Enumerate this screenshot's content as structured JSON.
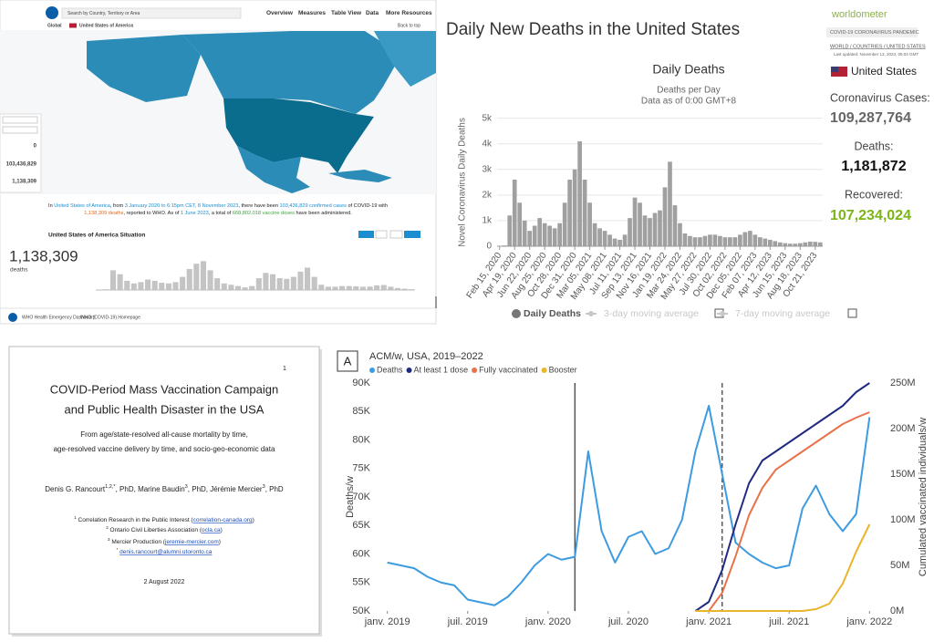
{
  "who_dashboard": {
    "search_placeholder": "Search by Country, Territory or Area",
    "nav": [
      "Overview",
      "Measures",
      "Table View",
      "Data",
      "More Resources"
    ],
    "breadcrumb": [
      "Global",
      "United States of America"
    ],
    "back_to_top": "Back to top",
    "side_values": [
      "0",
      "103,436,829",
      "1,138,309"
    ],
    "summary": [
      [
        {
          "text": "In "
        },
        {
          "text": "United States of America",
          "style": "blue"
        },
        {
          "text": ", from "
        },
        {
          "text": "3 January 2020 to 6:15pm CET, 8 November 2023",
          "style": "blue"
        },
        {
          "text": ", there have been "
        },
        {
          "text": "103,436,829 confirmed cases",
          "style": "blue"
        },
        {
          "text": " of COVID-19 with"
        }
      ],
      [
        {
          "text": "1,138,309 deaths",
          "style": "orange"
        },
        {
          "text": ", reported to WHO. As of "
        },
        {
          "text": "1 June 2023",
          "style": "blue"
        },
        {
          "text": ", a total of "
        },
        {
          "text": "668,802,018 vaccine doses",
          "style": "green"
        },
        {
          "text": " have been administered."
        }
      ]
    ],
    "situation_title": "United States of America Situation",
    "big_number": "1,138,309",
    "big_label": "deaths",
    "footer": [
      "WHO Health Emergency Dashboard",
      "WHO (COVID-19) Homepage"
    ]
  },
  "worldometer": {
    "logo": "worldometer",
    "banner": "COVID-19 CORONAVIRUS PANDEMIC",
    "breadcrumb": "WORLD / COUNTRIES / UNITED STATES",
    "updated": "Last updated: November 13, 2023, 05:04 GMT",
    "country": "United States",
    "cases_label": "Coronavirus Cases:",
    "cases": "109,287,764",
    "deaths_label": "Deaths:",
    "deaths": "1,181,872",
    "recovered_label": "Recovered:",
    "recovered": "107,234,024"
  },
  "paper": {
    "page_number": "1",
    "title": [
      "COVID-Period Mass Vaccination Campaign",
      "and Public Health Disaster in the USA"
    ],
    "subtitle": [
      "From age/state-resolved all-cause mortality by time,",
      "age-resolved vaccine delivery by time, and socio-geo-economic data"
    ],
    "authors": [
      {
        "text": "Denis G. Rancourt"
      },
      {
        "sup": "1,2,*"
      },
      {
        "text": ", PhD, Marine Baudin"
      },
      {
        "sup": "3"
      },
      {
        "text": ", PhD, Jérémie Mercier"
      },
      {
        "sup": "3"
      },
      {
        "text": ", PhD"
      }
    ],
    "affiliations": [
      [
        {
          "sup": "1"
        },
        {
          "text": " Correlation Research in the Public Interest ("
        },
        {
          "link": "correlation-canada.org"
        },
        {
          "text": ")"
        }
      ],
      [
        {
          "sup": "2"
        },
        {
          "text": " Ontario Civil Liberties Association ("
        },
        {
          "link": "ocla.ca"
        },
        {
          "text": ")"
        }
      ],
      [
        {
          "sup": "3"
        },
        {
          "text": " Mercier Production ("
        },
        {
          "link": "jeremie-mercier.com"
        },
        {
          "text": ")"
        }
      ],
      [
        {
          "sup": "*"
        },
        {
          "text": " "
        },
        {
          "link": "denis.rancourt@alumni.utoronto.ca"
        }
      ]
    ],
    "date": "2 August 2022"
  },
  "chart_data": [
    {
      "type": "bar",
      "title": "Daily New Deaths in the United States",
      "chart_title": "Daily Deaths",
      "subtitle": [
        "Deaths per Day",
        "Data as of 0:00 GMT+8"
      ],
      "y_label": "Novel Coronavirus Daily Deaths",
      "categories": [
        "Feb 15, 2020",
        null,
        null,
        "Apr 19, 2020",
        null,
        null,
        "Jun 22, 2020",
        null,
        null,
        "Aug 25, 2020",
        null,
        null,
        "Oct 28, 2020",
        null,
        null,
        "Dec 31, 2020",
        null,
        null,
        "Mar 05, 2021",
        null,
        null,
        "May 08, 2021",
        null,
        null,
        "Jul 11, 2021",
        null,
        null,
        "Sep 13, 2021",
        null,
        null,
        "Nov 16, 2021",
        null,
        null,
        "Jan 19, 2022",
        null,
        null,
        "Mar 24, 2022",
        null,
        null,
        "May 27, 2022",
        null,
        null,
        "Jul 30, 2022",
        null,
        null,
        "Oct 02, 2022",
        null,
        null,
        "Dec 05, 2022",
        null,
        null,
        "Feb 07, 2023",
        null,
        null,
        "Apr 12, 2023",
        null,
        null,
        "Jun 15, 2023",
        null,
        null,
        "Aug 18, 2023",
        null,
        null,
        "Oct 21, 2023",
        null
      ],
      "values": [
        10,
        30,
        1200,
        2600,
        1700,
        1000,
        600,
        800,
        1100,
        900,
        800,
        700,
        900,
        1700,
        2600,
        3000,
        4100,
        2600,
        1700,
        900,
        700,
        600,
        450,
        300,
        250,
        450,
        1100,
        1900,
        1700,
        1200,
        1100,
        1300,
        1400,
        2300,
        3300,
        1600,
        900,
        500,
        400,
        350,
        350,
        400,
        450,
        450,
        400,
        350,
        350,
        350,
        450,
        550,
        600,
        450,
        350,
        300,
        250,
        200,
        150,
        120,
        100,
        100,
        120,
        150,
        180,
        170,
        150
      ],
      "color": "#a0a0a0",
      "ylim": [
        0,
        5200
      ],
      "yticks": [
        0,
        {
          "value": 1000,
          "label": "1k"
        },
        {
          "value": 2000,
          "label": "2k"
        },
        {
          "value": 3000,
          "label": "3k"
        },
        {
          "value": 4000,
          "label": "4k"
        },
        {
          "value": 5000,
          "label": "5k"
        }
      ],
      "grid": true,
      "legend": [
        "Daily Deaths",
        "3-day moving average",
        "7-day moving average"
      ]
    },
    {
      "type": "line",
      "panel_label": "A",
      "title": "ACM/w, USA, 2019–2022",
      "y_label": "Deaths/w",
      "y2_label": "Cumulated vaccinated individuals/w",
      "x": [
        "2019-01",
        "2019-02",
        "2019-03",
        "2019-04",
        "2019-05",
        "2019-06",
        "2019-07",
        "2019-08",
        "2019-09",
        "2019-10",
        "2019-11",
        "2019-12",
        "2020-01",
        "2020-02",
        "2020-03",
        "2020-04",
        "2020-05",
        "2020-06",
        "2020-07",
        "2020-08",
        "2020-09",
        "2020-10",
        "2020-11",
        "2020-12",
        "2021-01",
        "2021-02",
        "2021-03",
        "2021-04",
        "2021-05",
        "2021-06",
        "2021-07",
        "2021-08",
        "2021-09",
        "2021-10",
        "2021-11",
        "2021-12",
        "2022-01"
      ],
      "xlim": [
        "2018-12",
        "2022-02"
      ],
      "xticks": [
        {
          "value": "2019-01",
          "label": "janv. 2019"
        },
        {
          "value": "2019-07",
          "label": "juil. 2019"
        },
        {
          "value": "2020-01",
          "label": "janv. 2020"
        },
        {
          "value": "2020-07",
          "label": "juil. 2020"
        },
        {
          "value": "2021-01",
          "label": "janv. 2021"
        },
        {
          "value": "2021-07",
          "label": "juil. 2021"
        },
        {
          "value": "2022-01",
          "label": "janv. 2022"
        }
      ],
      "ylim": [
        50000,
        90000
      ],
      "yticks": [
        {
          "value": 50000,
          "label": "50K"
        },
        {
          "value": 55000,
          "label": "55K"
        },
        {
          "value": 60000,
          "label": "60K"
        },
        {
          "value": 65000,
          "label": "65K"
        },
        {
          "value": 70000,
          "label": "70K"
        },
        {
          "value": 75000,
          "label": "75K"
        },
        {
          "value": 80000,
          "label": "80K"
        },
        {
          "value": 85000,
          "label": "85K"
        },
        {
          "value": 90000,
          "label": "90K"
        }
      ],
      "y2lim": [
        0,
        250000000
      ],
      "y2ticks": [
        {
          "value": 0,
          "label": "0M"
        },
        {
          "value": 50000000,
          "label": "50M"
        },
        {
          "value": 100000000,
          "label": "100M"
        },
        {
          "value": 150000000,
          "label": "150M"
        },
        {
          "value": 200000000,
          "label": "200M"
        },
        {
          "value": 250000000,
          "label": "250M"
        }
      ],
      "vlines": [
        {
          "x": "2020-03",
          "style": "solid"
        },
        {
          "x": "2021-02",
          "style": "dashed"
        }
      ],
      "series": [
        {
          "name": "Deaths",
          "color": "#3d9be0",
          "values": [
            58500,
            58000,
            57500,
            56000,
            55000,
            54500,
            52000,
            51500,
            51000,
            52500,
            55000,
            58000,
            60000,
            59000,
            59500,
            78000,
            64000,
            58500,
            63000,
            64000,
            60000,
            61000,
            66000,
            78000,
            86000,
            74000,
            62000,
            60000,
            58500,
            57500,
            58000,
            68000,
            72000,
            67000,
            64000,
            67000,
            84000
          ]
        },
        {
          "name": "At least 1 dose",
          "color": "#1f2a80",
          "axis": "y2",
          "values": [
            null,
            null,
            null,
            null,
            null,
            null,
            null,
            null,
            null,
            null,
            null,
            null,
            null,
            null,
            null,
            null,
            null,
            null,
            null,
            null,
            null,
            null,
            null,
            0,
            10000000,
            45000000,
            95000000,
            140000000,
            165000000,
            175000000,
            185000000,
            195000000,
            205000000,
            215000000,
            225000000,
            240000000,
            250000000
          ]
        },
        {
          "name": "Fully vaccinated",
          "color": "#e8734a",
          "axis": "y2",
          "values": [
            null,
            null,
            null,
            null,
            null,
            null,
            null,
            null,
            null,
            null,
            null,
            null,
            null,
            null,
            null,
            null,
            null,
            null,
            null,
            null,
            null,
            null,
            null,
            0,
            0,
            20000000,
            60000000,
            105000000,
            135000000,
            155000000,
            165000000,
            175000000,
            185000000,
            195000000,
            205000000,
            212000000,
            218000000
          ]
        },
        {
          "name": "Booster",
          "color": "#e8b52c",
          "axis": "y2",
          "values": [
            null,
            null,
            null,
            null,
            null,
            null,
            null,
            null,
            null,
            null,
            null,
            null,
            null,
            null,
            null,
            null,
            null,
            null,
            null,
            null,
            null,
            null,
            null,
            0,
            0,
            0,
            0,
            0,
            0,
            0,
            0,
            0,
            2000000,
            8000000,
            30000000,
            65000000,
            95000000
          ]
        }
      ]
    },
    {
      "type": "bar",
      "values": [
        0,
        500,
        15000,
        12000,
        7000,
        5000,
        6000,
        8000,
        7000,
        5500,
        5000,
        6000,
        10000,
        16000,
        20000,
        22000,
        15000,
        9000,
        5000,
        4000,
        3000,
        2000,
        3000,
        9000,
        13000,
        12000,
        9000,
        8500,
        10000,
        14000,
        17000,
        10000,
        4000,
        2500,
        2500,
        3000,
        3000,
        2800,
        2500,
        2600,
        3500,
        3800,
        2500,
        1500,
        1000,
        600
      ],
      "color": "#c4c4c4",
      "ylim": [
        0,
        25000
      ]
    }
  ]
}
